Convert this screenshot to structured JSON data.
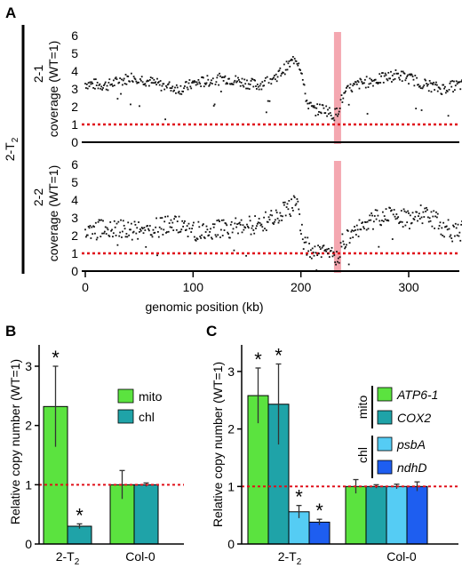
{
  "colors": {
    "mito": "#5BE33F",
    "chl": "#1FA3A8",
    "ATP6-1": "#5BE33F",
    "COX2": "#1FA3A8",
    "psbA": "#55CCF4",
    "ndhD": "#1E5EF0",
    "reference_line": "#E0101A",
    "highlight_band": "#F4A7B0",
    "points": "#111111"
  },
  "panel_a": {
    "letter": "A",
    "line_label": "2-T",
    "line_label_sub": "2",
    "xlabel": "genomic position (kb)",
    "x_ticks": [
      "0",
      "100",
      "200",
      "300"
    ]
  },
  "panel_b": {
    "letter": "B",
    "ylabel": "Relative copy number (WT=1)",
    "y_ticks": [
      "0",
      "1",
      "2",
      "3"
    ],
    "group_labels": [
      "2-T",
      "Col-0"
    ],
    "group_label_sub": "2",
    "legend": [
      "mito",
      "chl"
    ],
    "star": "*"
  },
  "panel_c": {
    "letter": "C",
    "ylabel": "Relative copy number (WT=1)",
    "y_ticks": [
      "0",
      "1",
      "2",
      "3"
    ],
    "group_labels": [
      "2-T",
      "Col-0"
    ],
    "group_label_sub": "2",
    "legend_group_mito": "mito",
    "legend_group_chl": "chl",
    "legend": [
      "ATP6-1",
      "COX2",
      "psbA",
      "ndhD"
    ],
    "star": "*"
  },
  "chart_data": [
    {
      "type": "scatter",
      "panel": "A",
      "subplot": "2-1",
      "ylabel": "coverage (WT=1)",
      "xlabel": "genomic position (kb)",
      "xlim": [
        -5,
        370
      ],
      "ylim": [
        0,
        6
      ],
      "y_ticks": [
        0,
        1,
        2,
        3,
        4,
        5,
        6
      ],
      "reference_line_y": 1,
      "highlight_x": 234,
      "profile": [
        [
          0,
          3.3
        ],
        [
          20,
          3.2
        ],
        [
          45,
          3.7
        ],
        [
          70,
          3.2
        ],
        [
          90,
          3.0
        ],
        [
          100,
          3.3
        ],
        [
          130,
          3.6
        ],
        [
          160,
          3.2
        ],
        [
          175,
          3.6
        ],
        [
          190,
          4.4
        ],
        [
          195,
          4.8
        ],
        [
          200,
          4.2
        ],
        [
          203,
          3.0
        ],
        [
          206,
          2.2
        ],
        [
          212,
          1.8
        ],
        [
          222,
          1.9
        ],
        [
          230,
          1.5
        ],
        [
          234,
          1.7
        ],
        [
          237,
          2.3
        ],
        [
          240,
          2.6
        ],
        [
          245,
          3.0
        ],
        [
          255,
          3.3
        ],
        [
          270,
          3.5
        ],
        [
          290,
          3.8
        ],
        [
          305,
          3.5
        ],
        [
          318,
          3.2
        ],
        [
          330,
          3.0
        ],
        [
          345,
          3.2
        ],
        [
          360,
          3.3
        ],
        [
          368,
          3.1
        ]
      ]
    },
    {
      "type": "scatter",
      "panel": "A",
      "subplot": "2-2",
      "ylabel": "coverage (WT=1)",
      "xlabel": "genomic position (kb)",
      "xlim": [
        -5,
        370
      ],
      "ylim": [
        0,
        6
      ],
      "y_ticks": [
        0,
        1,
        2,
        3,
        4,
        5,
        6
      ],
      "reference_line_y": 1,
      "highlight_x": 234,
      "profile": [
        [
          0,
          2.1
        ],
        [
          20,
          2.5
        ],
        [
          40,
          2.3
        ],
        [
          60,
          2.4
        ],
        [
          85,
          2.6
        ],
        [
          100,
          2.2
        ],
        [
          120,
          2.3
        ],
        [
          150,
          2.5
        ],
        [
          175,
          2.9
        ],
        [
          190,
          3.6
        ],
        [
          196,
          3.8
        ],
        [
          200,
          2.5
        ],
        [
          203,
          1.6
        ],
        [
          208,
          1.2
        ],
        [
          220,
          1.0
        ],
        [
          228,
          0.9
        ],
        [
          234,
          0.6
        ],
        [
          238,
          1.5
        ],
        [
          245,
          2.1
        ],
        [
          255,
          2.4
        ],
        [
          270,
          3.0
        ],
        [
          285,
          3.2
        ],
        [
          300,
          2.9
        ],
        [
          315,
          3.3
        ],
        [
          325,
          2.8
        ],
        [
          340,
          2.2
        ],
        [
          355,
          2.3
        ],
        [
          368,
          2.2
        ]
      ]
    },
    {
      "type": "bar",
      "panel": "B",
      "categories": [
        "2-T2",
        "Col-0"
      ],
      "series": [
        {
          "name": "mito",
          "values": [
            2.32,
            1.0
          ],
          "errors": [
            0.68,
            0.24
          ]
        },
        {
          "name": "chl",
          "values": [
            0.3,
            1.0
          ],
          "errors": [
            0.04,
            0.03
          ]
        }
      ],
      "significant": [
        [
          true,
          false
        ],
        [
          true,
          false
        ]
      ],
      "ylabel": "Relative copy number (WT=1)",
      "ylim": [
        0,
        3.3
      ],
      "reference_line_y": 1
    },
    {
      "type": "bar",
      "panel": "C",
      "categories": [
        "2-T2",
        "Col-0"
      ],
      "series": [
        {
          "name": "ATP6-1",
          "values": [
            2.58,
            1.0
          ],
          "errors": [
            0.48,
            0.12
          ]
        },
        {
          "name": "COX2",
          "values": [
            2.43,
            1.0
          ],
          "errors": [
            0.7,
            0.03
          ]
        },
        {
          "name": "psbA",
          "values": [
            0.56,
            1.0
          ],
          "errors": [
            0.11,
            0.04
          ]
        },
        {
          "name": "ndhD",
          "values": [
            0.38,
            1.0
          ],
          "errors": [
            0.05,
            0.08
          ]
        }
      ],
      "significant": [
        [
          true,
          false
        ],
        [
          true,
          false
        ],
        [
          true,
          false
        ],
        [
          true,
          false
        ]
      ],
      "ylabel": "Relative copy number (WT=1)",
      "ylim": [
        0,
        3.4
      ],
      "reference_line_y": 1
    }
  ]
}
